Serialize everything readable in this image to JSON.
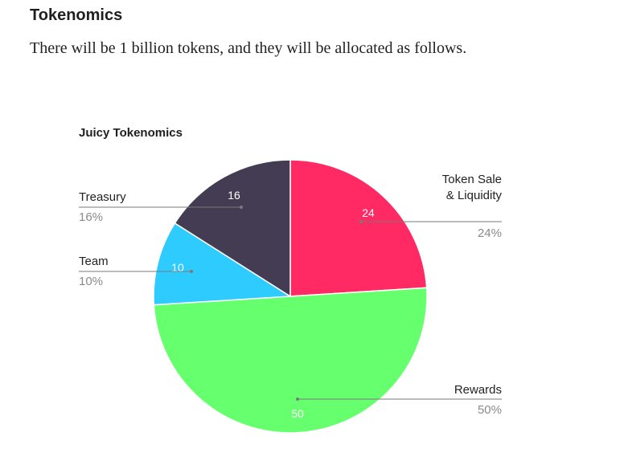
{
  "header": {
    "title": "Tokenomics",
    "intro": "There will be 1 billion tokens, and they will be allocated as follows."
  },
  "chart_data": {
    "type": "pie",
    "title": "Juicy Tokenomics",
    "start_angle_deg": 0,
    "direction": "clockwise",
    "slices": [
      {
        "label_lines": [
          "Token Sale",
          "& Liquidity"
        ],
        "value": 24,
        "value_label": "24",
        "percent_label": "24%",
        "color": "#ff2a63",
        "legend_side": "right"
      },
      {
        "label_lines": [
          "Rewards"
        ],
        "value": 50,
        "value_label": "50",
        "percent_label": "50%",
        "color": "#66ff6e",
        "legend_side": "right"
      },
      {
        "label_lines": [
          "Team"
        ],
        "value": 10,
        "value_label": "10",
        "percent_label": "10%",
        "color": "#2ecbff",
        "legend_side": "left"
      },
      {
        "label_lines": [
          "Treasury"
        ],
        "value": 16,
        "value_label": "16",
        "percent_label": "16%",
        "color": "#443c52",
        "legend_side": "left"
      }
    ],
    "leader_line_color": "#7a7a7a"
  }
}
